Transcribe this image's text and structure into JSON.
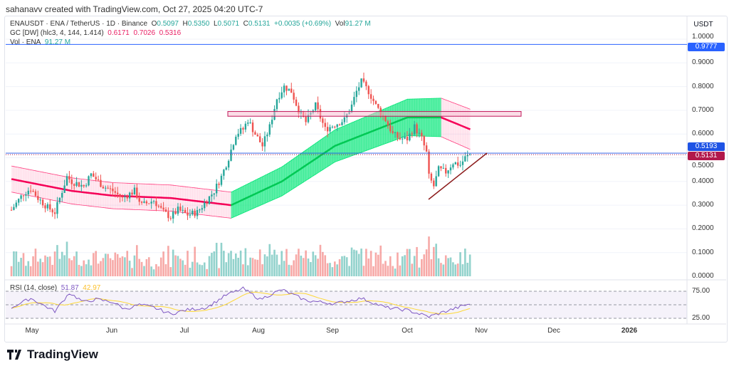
{
  "credit": "sahanavv created with TradingView.com, Oct 27, 2025 04:20 UTC-7",
  "legend": {
    "symbol": "ENAUSDT · ENA / TetherUS · 1D · Binance",
    "o_label": "O",
    "o": "0.5097",
    "h_label": "H",
    "h": "0.5350",
    "l_label": "L",
    "l": "0.5071",
    "c_label": "C",
    "c": "0.5131",
    "change": "+0.0035 (+0.69%)",
    "vol_label": "Vol",
    "vol": "91.27 M",
    "gc_label": "GC [DW] (hlc3, 4, 144, 1.414)",
    "gc_values": [
      "0.6171",
      "0.7026",
      "0.5316"
    ],
    "volume_label": "Vol · ENA",
    "volume_value": "91.27 M",
    "rsi_label": "RSI (14, close)",
    "rsi_value": "51.87",
    "rsi_ma": "42.97"
  },
  "price_axis": {
    "unit": "USDT",
    "ticks": [
      "1.0000",
      "0.9000",
      "0.8000",
      "0.7000",
      "0.6000",
      "0.5000",
      "0.4000",
      "0.3000",
      "0.2000",
      "0.1000",
      "0.0000"
    ],
    "tags": [
      {
        "text": "0.9777",
        "color": "#2962ff"
      },
      {
        "text": "0.5193",
        "color": "#1e53e5"
      },
      {
        "text": "0.5131",
        "color": "#b2184b"
      }
    ]
  },
  "rsi_axis": {
    "ticks": [
      "75.00",
      "25.00"
    ]
  },
  "time_axis": [
    "May",
    "Jun",
    "Jul",
    "Aug",
    "Sep",
    "Oct",
    "Nov",
    "Dec",
    "2026"
  ],
  "brand": "TradingView",
  "colors": {
    "up": "#26a69a",
    "down": "#ef5350",
    "channel_up": "#00e676",
    "channel_down": "#ff4081",
    "rsi": "#7e57c2",
    "rsi_ma": "#fdd835",
    "hline": "#2962ff"
  },
  "chart_data": {
    "type": "candlestick",
    "ylim": [
      0,
      1.0
    ],
    "horizontal_line": 0.9777,
    "zone": [
      0.675,
      0.695
    ],
    "close_keypoints": [
      [
        "2025-04-20",
        0.28
      ],
      [
        "2025-04-25",
        0.35
      ],
      [
        "2025-04-28",
        0.37
      ],
      [
        "2025-05-01",
        0.33
      ],
      [
        "2025-05-05",
        0.29
      ],
      [
        "2025-05-08",
        0.27
      ],
      [
        "2025-05-10",
        0.33
      ],
      [
        "2025-05-13",
        0.42
      ],
      [
        "2025-05-15",
        0.4
      ],
      [
        "2025-05-20",
        0.38
      ],
      [
        "2025-05-23",
        0.43
      ],
      [
        "2025-05-28",
        0.38
      ],
      [
        "2025-06-01",
        0.36
      ],
      [
        "2025-06-05",
        0.33
      ],
      [
        "2025-06-10",
        0.36
      ],
      [
        "2025-06-13",
        0.3
      ],
      [
        "2025-06-18",
        0.32
      ],
      [
        "2025-06-22",
        0.27
      ],
      [
        "2025-06-25",
        0.25
      ],
      [
        "2025-06-28",
        0.28
      ],
      [
        "2025-07-02",
        0.26
      ],
      [
        "2025-07-06",
        0.27
      ],
      [
        "2025-07-10",
        0.32
      ],
      [
        "2025-07-13",
        0.36
      ],
      [
        "2025-07-16",
        0.42
      ],
      [
        "2025-07-19",
        0.5
      ],
      [
        "2025-07-22",
        0.6
      ],
      [
        "2025-07-25",
        0.62
      ],
      [
        "2025-07-27",
        0.66
      ],
      [
        "2025-07-30",
        0.6
      ],
      [
        "2025-08-02",
        0.55
      ],
      [
        "2025-08-05",
        0.63
      ],
      [
        "2025-08-08",
        0.75
      ],
      [
        "2025-08-11",
        0.8
      ],
      [
        "2025-08-14",
        0.78
      ],
      [
        "2025-08-17",
        0.7
      ],
      [
        "2025-08-20",
        0.65
      ],
      [
        "2025-08-24",
        0.72
      ],
      [
        "2025-08-28",
        0.62
      ],
      [
        "2025-09-01",
        0.64
      ],
      [
        "2025-09-05",
        0.66
      ],
      [
        "2025-09-08",
        0.72
      ],
      [
        "2025-09-10",
        0.78
      ],
      [
        "2025-09-12",
        0.82
      ],
      [
        "2025-09-15",
        0.78
      ],
      [
        "2025-09-18",
        0.72
      ],
      [
        "2025-09-22",
        0.66
      ],
      [
        "2025-09-25",
        0.6
      ],
      [
        "2025-09-28",
        0.58
      ],
      [
        "2025-10-01",
        0.58
      ],
      [
        "2025-10-04",
        0.63
      ],
      [
        "2025-10-07",
        0.58
      ],
      [
        "2025-10-09",
        0.52
      ],
      [
        "2025-10-10",
        0.42
      ],
      [
        "2025-10-12",
        0.38
      ],
      [
        "2025-10-14",
        0.45
      ],
      [
        "2025-10-17",
        0.44
      ],
      [
        "2025-10-20",
        0.48
      ],
      [
        "2025-10-23",
        0.47
      ],
      [
        "2025-10-25",
        0.5
      ],
      [
        "2025-10-27",
        0.5131
      ]
    ],
    "channel_mid": [
      [
        "2025-04-20",
        0.41
      ],
      [
        "2025-05-15",
        0.36
      ],
      [
        "2025-06-01",
        0.34
      ],
      [
        "2025-06-25",
        0.33
      ],
      [
        "2025-07-20",
        0.3
      ],
      [
        "2025-08-10",
        0.4
      ],
      [
        "2025-09-01",
        0.55
      ],
      [
        "2025-10-01",
        0.67
      ],
      [
        "2025-10-15",
        0.67
      ],
      [
        "2025-10-27",
        0.62
      ]
    ],
    "rsi_keypoints": [
      [
        "2025-04-20",
        45
      ],
      [
        "2025-04-28",
        62
      ],
      [
        "2025-05-08",
        38
      ],
      [
        "2025-05-14",
        72
      ],
      [
        "2025-05-20",
        55
      ],
      [
        "2025-05-25",
        60
      ],
      [
        "2025-06-01",
        55
      ],
      [
        "2025-06-06",
        42
      ],
      [
        "2025-06-12",
        50
      ],
      [
        "2025-06-18",
        45
      ],
      [
        "2025-06-25",
        33
      ],
      [
        "2025-07-01",
        40
      ],
      [
        "2025-07-10",
        45
      ],
      [
        "2025-07-18",
        68
      ],
      [
        "2025-07-25",
        80
      ],
      [
        "2025-08-01",
        60
      ],
      [
        "2025-08-10",
        78
      ],
      [
        "2025-08-20",
        58
      ],
      [
        "2025-09-01",
        52
      ],
      [
        "2025-09-12",
        62
      ],
      [
        "2025-09-22",
        45
      ],
      [
        "2025-10-01",
        40
      ],
      [
        "2025-10-10",
        28
      ],
      [
        "2025-10-17",
        38
      ],
      [
        "2025-10-27",
        51.87
      ]
    ]
  }
}
